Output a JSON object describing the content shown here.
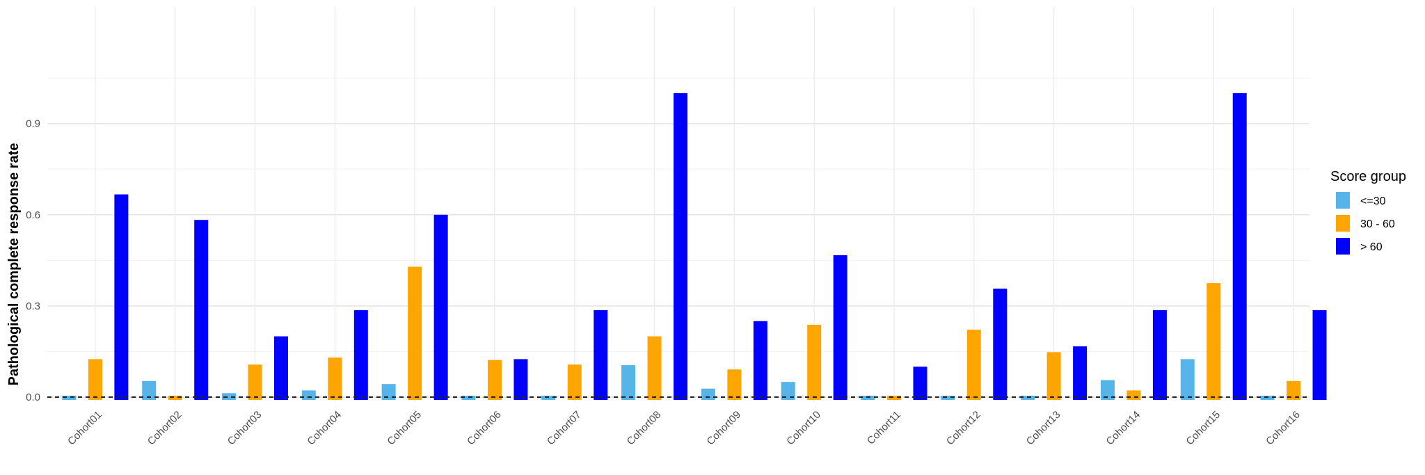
{
  "chart_data": {
    "type": "bar",
    "title": "",
    "xlabel": "",
    "ylabel": "Pathological complete response rate",
    "ylim": [
      0,
      1.08
    ],
    "yticks": [
      "0.0",
      "0.3",
      "0.6",
      "0.9"
    ],
    "grid": true,
    "legend_position": "right",
    "legend_title": "Score group",
    "reference_line": {
      "y": 0.0,
      "style": "dashed"
    },
    "categories": [
      "Cohort01",
      "Cohort02",
      "Cohort03",
      "Cohort04",
      "Cohort05",
      "Cohort06",
      "Cohort07",
      "Cohort08",
      "Cohort09",
      "Cohort10",
      "Cohort11",
      "Cohort12",
      "Cohort13",
      "Cohort14",
      "Cohort15",
      "Cohort16"
    ],
    "series": [
      {
        "name": "<=30",
        "color": "#56B4E9",
        "values": [
          0.0,
          0.053,
          0.013,
          0.022,
          0.043,
          0.0,
          0.0,
          0.105,
          0.028,
          0.05,
          0.0,
          0.0,
          0.0,
          0.056,
          0.125,
          0.0
        ]
      },
      {
        "name": "30 - 60",
        "color": "#FFA500",
        "values": [
          0.125,
          0.0,
          0.107,
          0.13,
          0.429,
          0.122,
          0.107,
          0.2,
          0.091,
          0.238,
          0.0,
          0.222,
          0.148,
          0.022,
          0.375,
          0.053
        ]
      },
      {
        "name": "> 60",
        "color": "#0000FF",
        "values": [
          0.667,
          0.583,
          0.2,
          0.286,
          0.6,
          0.125,
          0.286,
          1.0,
          0.25,
          0.467,
          0.1,
          0.357,
          0.167,
          0.286,
          1.0,
          0.286
        ]
      }
    ]
  }
}
